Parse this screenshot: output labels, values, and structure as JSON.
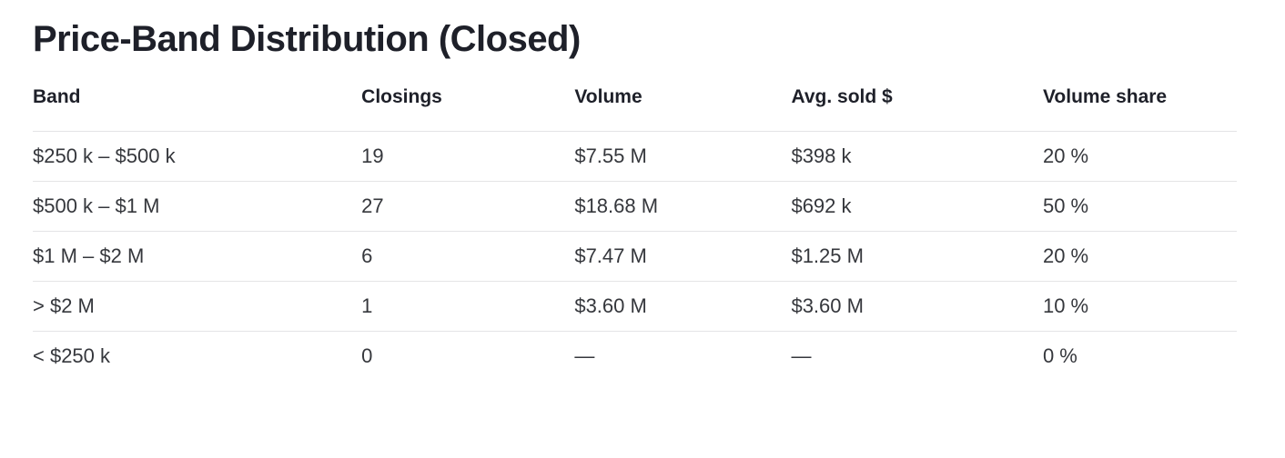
{
  "chart_data": {
    "type": "table",
    "title": "Price-Band Distribution (Closed)",
    "columns": [
      "Band",
      "Closings",
      "Volume",
      "Avg. sold $",
      "Volume share"
    ],
    "rows": [
      [
        "$250 k – $500 k",
        "19",
        "$7.55 M",
        "$398 k",
        "20 %"
      ],
      [
        "$500 k – $1 M",
        "27",
        "$18.68 M",
        "$692 k",
        "50 %"
      ],
      [
        "$1 M – $2 M",
        "6",
        "$7.47 M",
        "$1.25 M",
        "20 %"
      ],
      [
        "> $2 M",
        "1",
        "$3.60 M",
        "$3.60 M",
        "10 %"
      ],
      [
        "< $250 k",
        "0",
        "—",
        "—",
        "0 %"
      ]
    ],
    "layout": {
      "background": "#ffffff",
      "heading_color": "#1e2029",
      "body_text_color": "#35373c",
      "divider_color": "#e4e4e6",
      "alignment": "left",
      "last_row_divider": false
    }
  }
}
